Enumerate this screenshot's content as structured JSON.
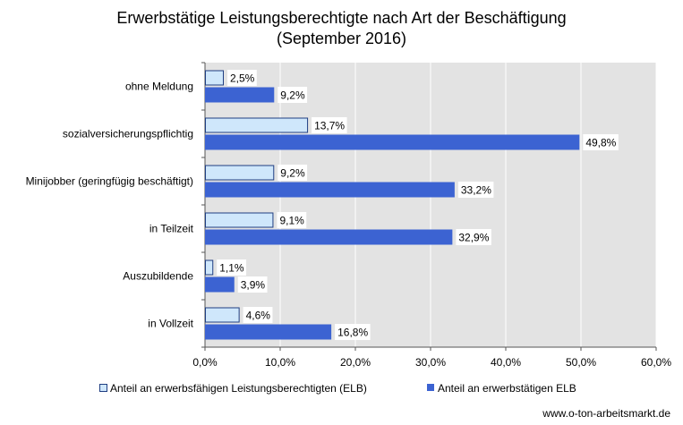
{
  "title_line1": "Erwerbstätige Leistungsberechtigte nach Art der Beschäftigung",
  "title_line2": "(September 2016)",
  "source": "www.o-ton-arbeitsmarkt.de",
  "colors": {
    "plot_background": "#e3e3e3",
    "series1_fill": "#cfe7fb",
    "series1_stroke": "#1f3e82",
    "series2_fill": "#3c63d2"
  },
  "chart_data": {
    "type": "bar",
    "orientation": "horizontal",
    "categories": [
      "ohne Meldung",
      "sozialversicherungspflichtig",
      "Minijobber (geringfügig beschäftigt)",
      "in Teilzeit",
      "Auszubildende",
      "in Vollzeit"
    ],
    "series": [
      {
        "name": "Anteil an erwerbsfähigen Leistungsberechtigten (ELB)",
        "values": [
          2.5,
          13.7,
          9.2,
          9.1,
          1.1,
          4.6
        ],
        "labels": [
          "2,5%",
          "13,7%",
          "9,2%",
          "9,1%",
          "1,1%",
          "4,6%"
        ]
      },
      {
        "name": "Anteil an erwerbstätigen ELB",
        "values": [
          9.2,
          49.8,
          33.2,
          32.9,
          3.9,
          16.8
        ],
        "labels": [
          "9,2%",
          "49,8%",
          "33,2%",
          "32,9%",
          "3,9%",
          "16,8%"
        ]
      }
    ],
    "xlim": [
      0,
      60
    ],
    "xticks": [
      0,
      10,
      20,
      30,
      40,
      50,
      60
    ],
    "xtick_labels": [
      "0,0%",
      "10,0%",
      "20,0%",
      "30,0%",
      "40,0%",
      "50,0%",
      "60,0%"
    ],
    "grid": true,
    "legend_position": "bottom"
  }
}
